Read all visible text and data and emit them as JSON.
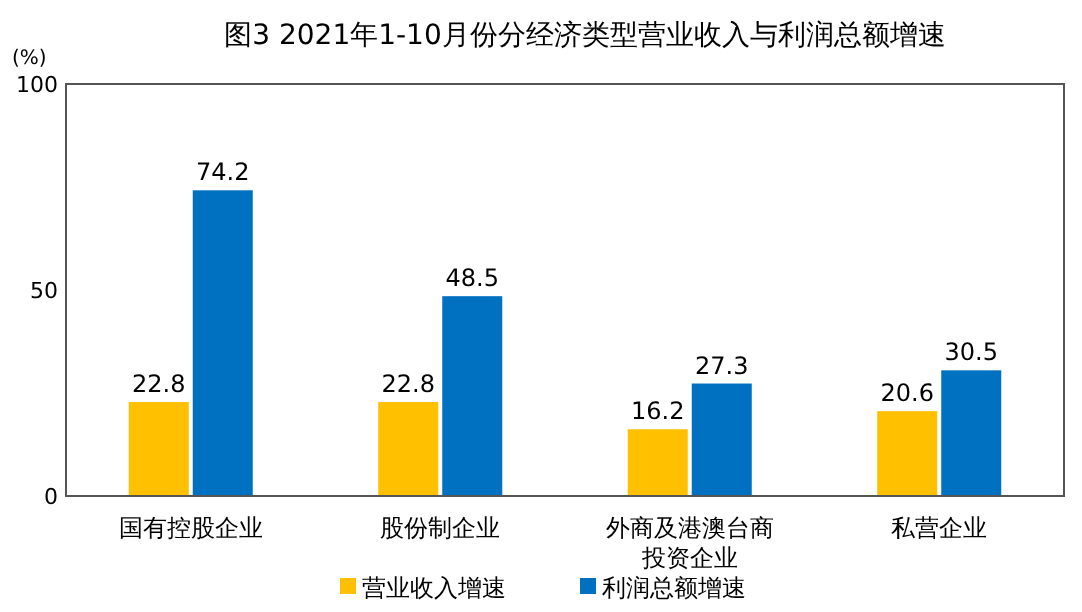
{
  "chart_data": {
    "type": "bar",
    "title": "图3  2021年1-10月份分经济类型营业收入与利润总额增速",
    "ylabel": "(%)",
    "categories": [
      "国有控股企业",
      "股份制企业",
      "外商及港澳台商投资企业",
      "私营企业"
    ],
    "series": [
      {
        "name": "营业收入增速",
        "color": "#ffc000",
        "values": [
          22.8,
          22.8,
          16.2,
          20.6
        ]
      },
      {
        "name": "利润总额增速",
        "color": "#0070c0",
        "values": [
          74.2,
          48.5,
          27.3,
          30.5
        ]
      }
    ],
    "ylim": [
      0,
      100
    ],
    "yticks": [
      0,
      50,
      100
    ],
    "data_labels": true,
    "legend": "bottom",
    "grid": false
  }
}
